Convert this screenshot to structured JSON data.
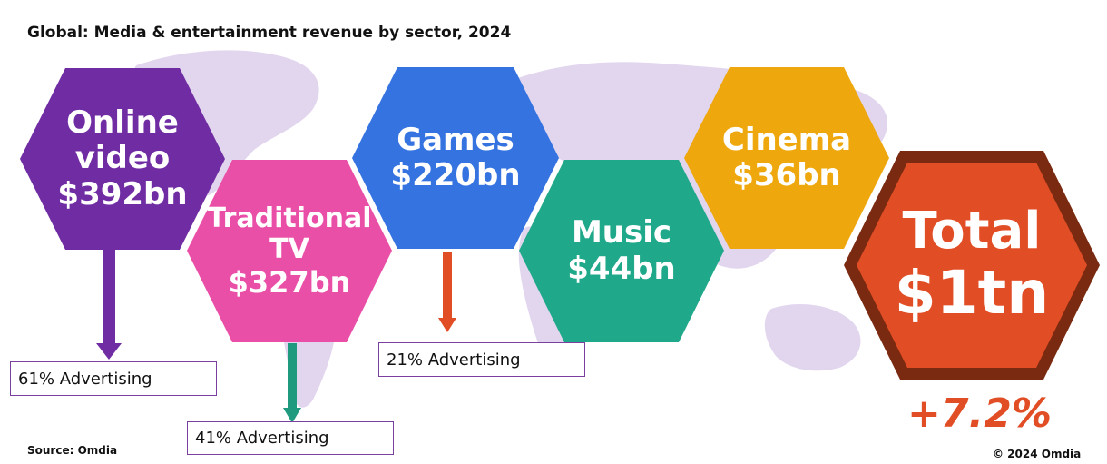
{
  "title": "Global: Media & entertainment revenue by sector, 2024",
  "sectors": [
    {
      "name": "Online video",
      "name_lines": [
        "Online",
        "video"
      ],
      "value": "$392bn",
      "color": "#6f2ca3",
      "advertising": "61% Advertising",
      "arrow_color": "#6f2ca3"
    },
    {
      "name": "Traditional TV",
      "name_lines": [
        "Traditional",
        "TV"
      ],
      "value": "$327bn",
      "color": "#ea4fa8",
      "advertising": "41% Advertising",
      "arrow_color": "#1f9a7e"
    },
    {
      "name": "Games",
      "name_lines": [
        "Games"
      ],
      "value": "$220bn",
      "color": "#3574e0",
      "advertising": "21% Advertising",
      "arrow_color": "#e14d24"
    },
    {
      "name": "Music",
      "name_lines": [
        "Music"
      ],
      "value": "$44bn",
      "color": "#20a88a"
    },
    {
      "name": "Cinema",
      "name_lines": [
        "Cinema"
      ],
      "value": "$36bn",
      "color": "#eea80d"
    }
  ],
  "total": {
    "label": "Total",
    "value": "$1tn",
    "fill": "#e14d24",
    "border": "#7a2a10",
    "growth": "+7.2%"
  },
  "source": "Source: Omdia",
  "copyright": "© 2024 Omdia",
  "map_color": "#e2d6ef"
}
